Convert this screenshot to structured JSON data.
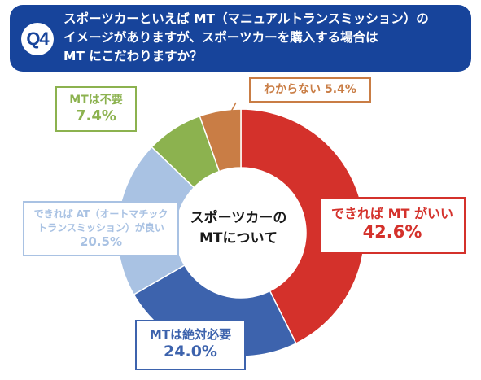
{
  "header": {
    "badge": "Q4",
    "question_lines": [
      "スポーツカーといえば MT（マニュアルトランスミッション）の",
      "イメージがありますが、スポーツカーを購入する場合は",
      "MT にこだわりますか？"
    ]
  },
  "center_lines": [
    "スポーツカーの",
    "MTについて"
  ],
  "chart_data": {
    "type": "pie",
    "title": "",
    "unit": "%",
    "slices": [
      {
        "label": "できれば MT がいい",
        "value": 42.6,
        "value_label": "42.6%",
        "color": "#d4312b"
      },
      {
        "label": "MTは絶対必要",
        "value": 24.0,
        "value_label": "24.0%",
        "color": "#3d63ad"
      },
      {
        "label_lines": [
          "できれば AT（オートマチック",
          "トランスミッション）が良い"
        ],
        "value": 20.5,
        "value_label": "20.5%",
        "color": "#a9c2e3"
      },
      {
        "label": "MTは不要",
        "value": 7.4,
        "value_label": "7.4%",
        "color": "#8cb24f"
      },
      {
        "label": "わからない",
        "value": 5.4,
        "value_label": "5.4%",
        "color": "#c97d45"
      }
    ]
  }
}
